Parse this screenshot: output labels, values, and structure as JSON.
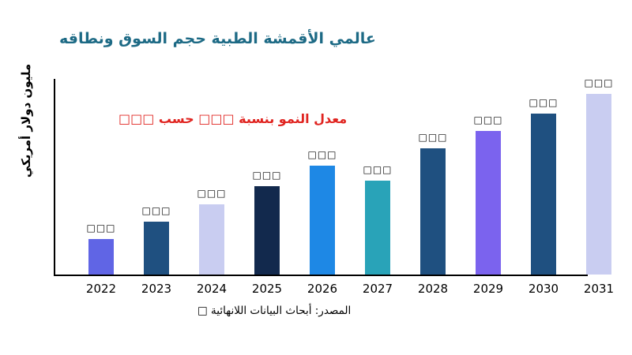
{
  "page": {
    "background": "#ffffff"
  },
  "title": {
    "text": "عالمي الأقمشة الطبية حجم السوق ونطاقه",
    "color": "#1d6a85"
  },
  "annotation": {
    "text": "معدل النمو بنسبة □□□ حسب □□□",
    "color": "#e02420"
  },
  "source": {
    "text": "المصدر: أبحاث البيانات اللانهائية □"
  },
  "chart_data": {
    "type": "bar",
    "title": "عالمي الأقمشة الطبية حجم السوق ونطاقه",
    "xlabel": "",
    "ylabel": "مليون دولار أمريكي",
    "categories": [
      "2022",
      "2023",
      "2024",
      "2025",
      "2026",
      "2027",
      "2028",
      "2029",
      "2030",
      "2031"
    ],
    "values": [
      45,
      68,
      90,
      113,
      139,
      120,
      161,
      183,
      206,
      231
    ],
    "value_labels": [
      "□□□",
      "□□□",
      "□□□",
      "□□□",
      "□□□",
      "□□□",
      "□□□",
      "□□□",
      "□□□",
      "□□□"
    ],
    "bar_colors": [
      "#6065e5",
      "#1f5080",
      "#c9cdf1",
      "#12294d",
      "#1e88e5",
      "#29a3b8",
      "#1f5080",
      "#7b63ee",
      "#1f5080",
      "#c9cdf1"
    ],
    "ylim": [
      0,
      250
    ],
    "grid": false,
    "legend": "none",
    "annotation_text": "معدل النمو بنسبة □□□ حسب □□□",
    "source_text": "المصدر: أبحاث البيانات اللانهائية □"
  }
}
